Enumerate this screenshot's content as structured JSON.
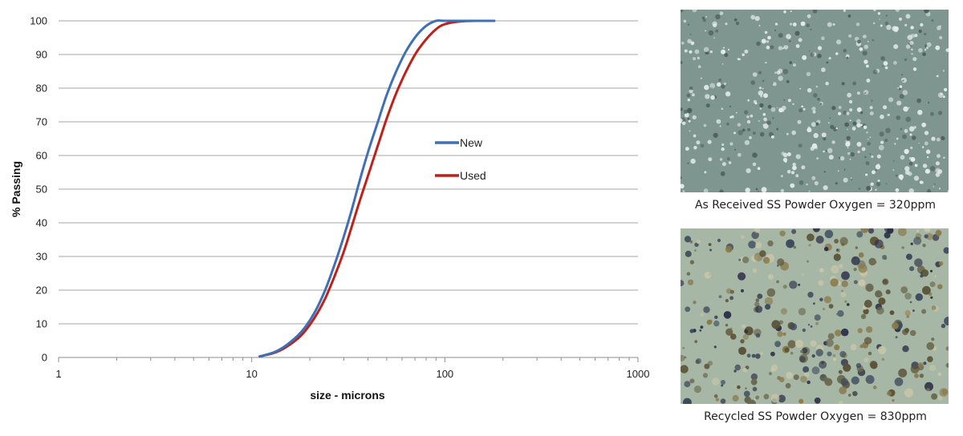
{
  "chart_data": {
    "type": "line",
    "xscale": "log",
    "xlim": [
      1,
      1000
    ],
    "ylim": [
      0,
      100
    ],
    "xticks": [
      "1",
      "10",
      "100",
      "1000"
    ],
    "yticks": [
      "0",
      "10",
      "20",
      "30",
      "40",
      "50",
      "60",
      "70",
      "80",
      "90",
      "100"
    ],
    "xlabel": "size - microns",
    "ylabel": "% Passing",
    "grid": "horizontal",
    "legend_position": "center-right",
    "series": [
      {
        "name": "New",
        "color": "#3f6fb5",
        "points": [
          [
            11,
            0.3
          ],
          [
            13,
            1.5
          ],
          [
            15,
            3.5
          ],
          [
            18,
            7.5
          ],
          [
            21,
            13
          ],
          [
            24,
            20
          ],
          [
            27,
            28
          ],
          [
            30,
            36
          ],
          [
            33,
            44
          ],
          [
            36,
            52
          ],
          [
            40,
            61
          ],
          [
            45,
            70
          ],
          [
            50,
            78
          ],
          [
            56,
            85
          ],
          [
            63,
            91
          ],
          [
            71,
            95.5
          ],
          [
            80,
            98.5
          ],
          [
            90,
            100
          ],
          [
            100,
            100
          ],
          [
            150,
            100
          ],
          [
            180,
            100
          ]
        ]
      },
      {
        "name": "Used",
        "color": "#c0201a",
        "points": [
          [
            11,
            0.3
          ],
          [
            13,
            1.3
          ],
          [
            15,
            3
          ],
          [
            18,
            6.5
          ],
          [
            21,
            11.5
          ],
          [
            24,
            17.5
          ],
          [
            27,
            24.5
          ],
          [
            30,
            31.5
          ],
          [
            33,
            39
          ],
          [
            36,
            46
          ],
          [
            40,
            54
          ],
          [
            45,
            63
          ],
          [
            50,
            71
          ],
          [
            56,
            78.5
          ],
          [
            63,
            85
          ],
          [
            71,
            90.5
          ],
          [
            80,
            94.5
          ],
          [
            90,
            97.5
          ],
          [
            100,
            99
          ],
          [
            120,
            99.8
          ],
          [
            150,
            100
          ],
          [
            180,
            100
          ]
        ]
      }
    ]
  },
  "images": [
    {
      "caption": "As Received SS Powder Oxygen = 320ppm",
      "tone": "#7f9590"
    },
    {
      "caption": "Recycled SS Powder Oxygen = 830ppm",
      "tone": "#a7b7a5"
    }
  ]
}
